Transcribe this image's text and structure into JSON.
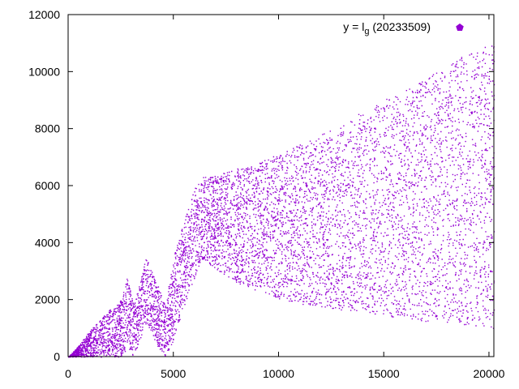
{
  "chart_data": {
    "type": "scatter",
    "title": "",
    "xlabel": "",
    "ylabel": "",
    "xlim": [
      0,
      20233
    ],
    "ylim": [
      0,
      12000
    ],
    "x_ticks": [
      0,
      5000,
      10000,
      15000,
      20000
    ],
    "y_ticks": [
      0,
      2000,
      4000,
      6000,
      8000,
      10000,
      12000
    ],
    "grid": false,
    "legend": {
      "placement": "top-right",
      "label_prefix": "y = l",
      "label_subscript": "g",
      "label_suffix": " (20233509)",
      "marker": "filled-pentagon"
    },
    "series": [
      {
        "color": "#9400d3",
        "marker": "dot",
        "envelope": [
          {
            "x": 0,
            "lower": 0,
            "upper": 0
          },
          {
            "x": 500,
            "lower": 0,
            "upper": 400
          },
          {
            "x": 1000,
            "lower": 0,
            "upper": 900
          },
          {
            "x": 1500,
            "lower": 0,
            "upper": 1300
          },
          {
            "x": 2000,
            "lower": 0,
            "upper": 1700
          },
          {
            "x": 2500,
            "lower": 0,
            "upper": 2000
          },
          {
            "x": 2800,
            "lower": 300,
            "upper": 2800
          },
          {
            "x": 3100,
            "lower": 0,
            "upper": 1800
          },
          {
            "x": 3700,
            "lower": 1200,
            "upper": 3500
          },
          {
            "x": 4200,
            "lower": 400,
            "upper": 2600
          },
          {
            "x": 4600,
            "lower": 0,
            "upper": 1800
          },
          {
            "x": 5000,
            "lower": 600,
            "upper": 3500
          },
          {
            "x": 5500,
            "lower": 1800,
            "upper": 4800
          },
          {
            "x": 6000,
            "lower": 2800,
            "upper": 5900
          },
          {
            "x": 6400,
            "lower": 3400,
            "upper": 6300
          },
          {
            "x": 7000,
            "lower": 3100,
            "upper": 6350
          },
          {
            "x": 8000,
            "lower": 2600,
            "upper": 6600
          },
          {
            "x": 9000,
            "lower": 2300,
            "upper": 6850
          },
          {
            "x": 10000,
            "lower": 2000,
            "upper": 7100
          },
          {
            "x": 11000,
            "lower": 1850,
            "upper": 7450
          },
          {
            "x": 12000,
            "lower": 1750,
            "upper": 7800
          },
          {
            "x": 13000,
            "lower": 1650,
            "upper": 8200
          },
          {
            "x": 14000,
            "lower": 1550,
            "upper": 8600
          },
          {
            "x": 15000,
            "lower": 1450,
            "upper": 9000
          },
          {
            "x": 16000,
            "lower": 1350,
            "upper": 9400
          },
          {
            "x": 17000,
            "lower": 1250,
            "upper": 9800
          },
          {
            "x": 18000,
            "lower": 1150,
            "upper": 10250
          },
          {
            "x": 19000,
            "lower": 1100,
            "upper": 10650
          },
          {
            "x": 20233,
            "lower": 1000,
            "upper": 11000
          }
        ]
      }
    ]
  }
}
